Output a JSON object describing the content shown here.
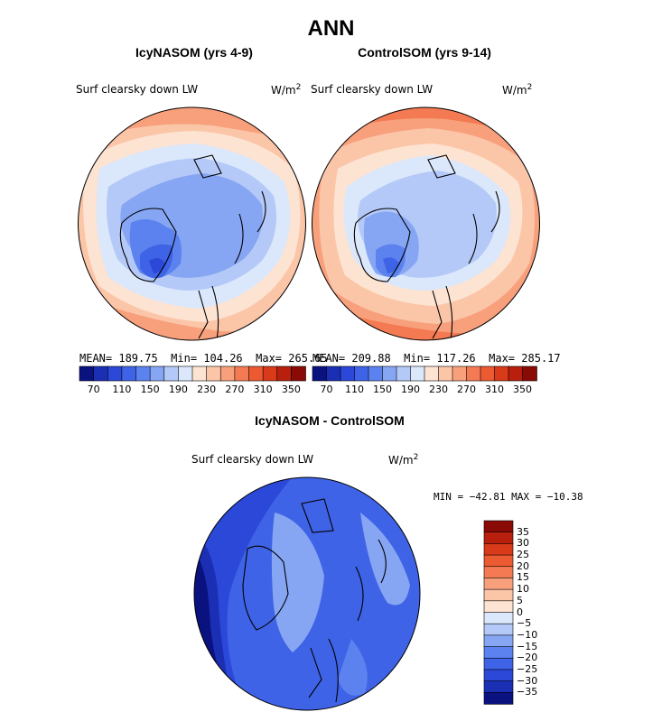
{
  "title": "ANN",
  "panels": [
    {
      "id": "icy",
      "title": "IcyNASOM (yrs 4-9)",
      "variable": "Surf clearsky down LW",
      "units_base": "W/m",
      "units_exp": "2",
      "stats": {
        "mean_label": "MEAN=",
        "mean": "189.75",
        "min_label": "Min=",
        "min": "104.26",
        "max_label": "Max=",
        "max": "265.65"
      }
    },
    {
      "id": "control",
      "title": "ControlSOM (yrs 9-14)",
      "variable": "Surf clearsky down LW",
      "units_base": "W/m",
      "units_exp": "2",
      "stats": {
        "mean_label": "MEAN=",
        "mean": "209.88",
        "min_label": "Min=",
        "min": "117.26",
        "max_label": "Max=",
        "max": "285.17"
      }
    }
  ],
  "abs_colorbar": {
    "tick_labels": [
      "70",
      "110",
      "150",
      "190",
      "230",
      "270",
      "310",
      "350"
    ],
    "colors": [
      "#0a1280",
      "#1b2fb4",
      "#2b48d8",
      "#3f63e6",
      "#5c82ef",
      "#86a6f3",
      "#b4c9f7",
      "#dbe7fb",
      "#fde3d2",
      "#fbc5a8",
      "#f8a07c",
      "#f37a52",
      "#ec5a32",
      "#d93a1a",
      "#b8200d",
      "#8a0a05"
    ]
  },
  "diff_panel": {
    "title": "IcyNASOM - ControlSOM",
    "variable": "Surf clearsky down LW",
    "units_base": "W/m",
    "units_exp": "2",
    "minmax": "MIN = −42.81  MAX = −10.38"
  },
  "diff_colorbar": {
    "tick_labels": [
      "35",
      "30",
      "25",
      "20",
      "15",
      "10",
      "5",
      "0",
      "−5",
      "−10",
      "−15",
      "−20",
      "−25",
      "−30",
      "−35"
    ],
    "colors_top_to_bottom": [
      "#8a0a05",
      "#b8200d",
      "#d93a1a",
      "#ec5a32",
      "#f37a52",
      "#f8a07c",
      "#fbc5a8",
      "#fde3d2",
      "#dbe7fb",
      "#b4c9f7",
      "#86a6f3",
      "#5c82ef",
      "#3f63e6",
      "#2b48d8",
      "#1b2fb4",
      "#0a1280"
    ]
  }
}
